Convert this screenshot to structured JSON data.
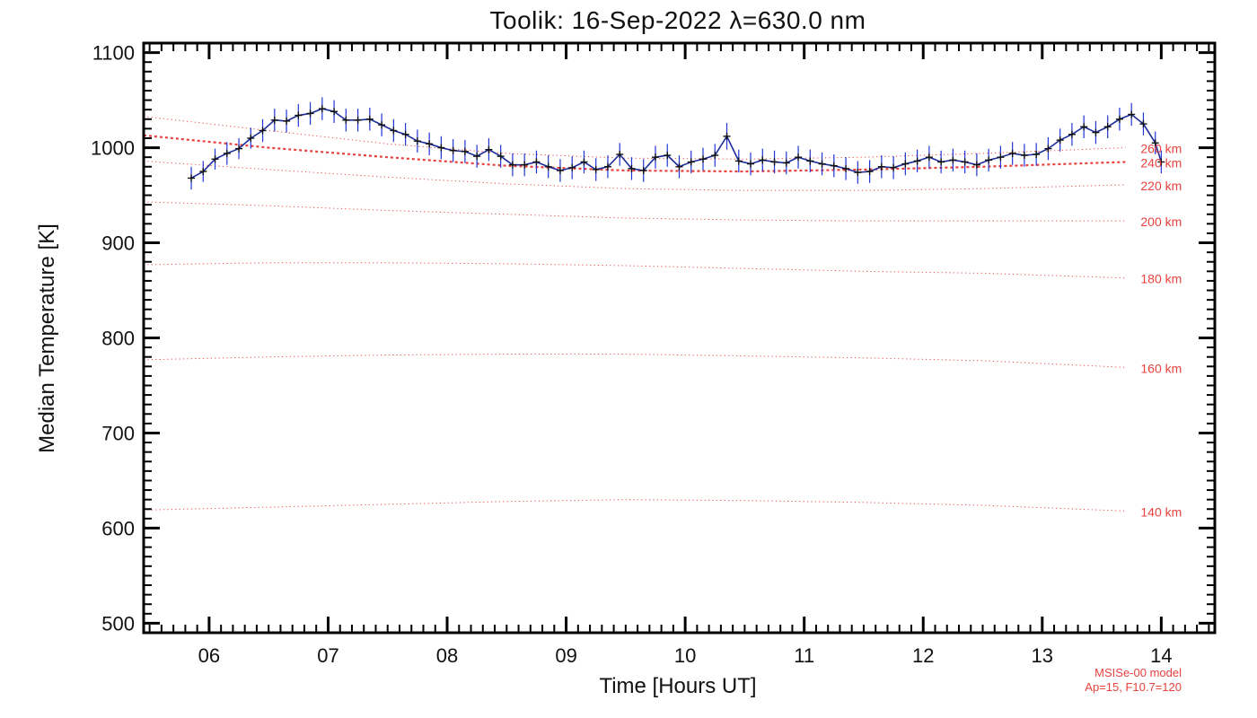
{
  "chart_data": {
    "type": "line",
    "title": "Toolik: 16-Sep-2022 λ=630.0 nm",
    "xlabel": "Time [Hours UT]",
    "ylabel": "Median Temperature [K]",
    "xlim": [
      5.45,
      14.45
    ],
    "ylim": [
      490,
      1110
    ],
    "xticks": [
      6,
      7,
      8,
      9,
      10,
      11,
      12,
      13,
      14
    ],
    "xtick_labels": [
      "06",
      "07",
      "08",
      "09",
      "10",
      "11",
      "12",
      "13",
      "14"
    ],
    "yticks": [
      500,
      600,
      700,
      800,
      900,
      1000,
      1100
    ],
    "ytick_labels": [
      "500",
      "600",
      "700",
      "800",
      "900",
      "1000",
      "1100"
    ],
    "grid": false,
    "colors": {
      "observed_line": "#1c2d9b",
      "observed_marker": "#111111",
      "error_bar": "#2136d6",
      "model": "#e8413e",
      "axis": "#000000"
    },
    "series": [
      {
        "type": "line_with_error",
        "x": [
          5.85,
          5.95,
          6.05,
          6.15,
          6.25,
          6.35,
          6.45,
          6.55,
          6.65,
          6.75,
          6.85,
          6.95,
          7.05,
          7.15,
          7.25,
          7.35,
          7.45,
          7.55,
          7.65,
          7.75,
          7.85,
          7.95,
          8.05,
          8.15,
          8.25,
          8.35,
          8.45,
          8.55,
          8.65,
          8.75,
          8.85,
          8.95,
          9.05,
          9.15,
          9.25,
          9.35,
          9.45,
          9.55,
          9.65,
          9.75,
          9.85,
          9.95,
          10.05,
          10.15,
          10.25,
          10.35,
          10.45,
          10.55,
          10.65,
          10.75,
          10.85,
          10.95,
          11.05,
          11.15,
          11.25,
          11.35,
          11.45,
          11.55,
          11.65,
          11.75,
          11.85,
          11.95,
          12.05,
          12.15,
          12.25,
          12.35,
          12.45,
          12.55,
          12.65,
          12.75,
          12.85,
          12.95,
          13.05,
          13.15,
          13.25,
          13.35,
          13.45,
          13.55,
          13.65,
          13.75,
          13.85,
          13.95,
          14.0
        ],
        "values": [
          968,
          975,
          988,
          994,
          999,
          1010,
          1018,
          1029,
          1028,
          1034,
          1036,
          1041,
          1038,
          1029,
          1029,
          1030,
          1024,
          1018,
          1014,
          1007,
          1004,
          1000,
          997,
          996,
          991,
          998,
          991,
          982,
          982,
          985,
          980,
          976,
          979,
          985,
          977,
          980,
          993,
          978,
          976,
          990,
          992,
          980,
          985,
          988,
          992,
          1012,
          986,
          983,
          987,
          985,
          984,
          990,
          986,
          983,
          981,
          978,
          974,
          975,
          980,
          979,
          983,
          986,
          990,
          985,
          987,
          985,
          982,
          987,
          990,
          994,
          992,
          993,
          999,
          1008,
          1014,
          1022,
          1016,
          1022,
          1030,
          1035,
          1025,
          1005,
          985
        ],
        "error_bars": [
          12,
          11,
          11,
          12,
          11,
          11,
          12,
          12,
          12,
          12,
          12,
          12,
          12,
          12,
          12,
          12,
          12,
          12,
          12,
          12,
          12,
          12,
          12,
          12,
          12,
          12,
          12,
          12,
          12,
          12,
          12,
          12,
          12,
          12,
          12,
          12,
          12,
          12,
          12,
          12,
          12,
          12,
          12,
          12,
          12,
          14,
          12,
          12,
          12,
          12,
          12,
          12,
          12,
          12,
          12,
          12,
          12,
          12,
          12,
          12,
          12,
          12,
          12,
          12,
          12,
          12,
          12,
          12,
          12,
          12,
          12,
          12,
          12,
          12,
          12,
          12,
          12,
          12,
          12,
          12,
          12,
          12,
          12
        ]
      },
      {
        "type": "model_line",
        "label": "140 km",
        "x": [
          5.45,
          6.5,
          7.5,
          8.5,
          9.5,
          10.5,
          11.5,
          12.5,
          13.7
        ],
        "values": [
          619,
          622,
          625,
          628,
          630,
          629,
          627,
          624,
          618
        ]
      },
      {
        "type": "model_line",
        "label": "160 km",
        "x": [
          5.45,
          6.5,
          7.5,
          8.5,
          9.5,
          10.5,
          11.5,
          12.5,
          13.7
        ],
        "values": [
          777,
          780,
          782,
          783,
          783,
          781,
          779,
          776,
          769
        ]
      },
      {
        "type": "model_line",
        "label": "180 km",
        "x": [
          5.45,
          6.5,
          7.5,
          8.5,
          9.5,
          10.5,
          11.5,
          12.5,
          13.7
        ],
        "values": [
          877,
          879,
          879,
          878,
          876,
          873,
          870,
          868,
          863
        ]
      },
      {
        "type": "model_line",
        "label": "200 km",
        "x": [
          5.45,
          6.5,
          7.5,
          8.5,
          9.5,
          10.5,
          11.5,
          12.5,
          13.7
        ],
        "values": [
          943,
          939,
          934,
          930,
          926,
          924,
          923,
          923,
          923
        ]
      },
      {
        "type": "model_line",
        "label": "220 km",
        "x": [
          5.45,
          6.5,
          7.5,
          8.5,
          9.5,
          10.5,
          11.5,
          12.5,
          13.7
        ],
        "values": [
          986,
          977,
          969,
          962,
          957,
          955,
          955,
          957,
          961
        ]
      },
      {
        "type": "model_line",
        "label": "240 km",
        "x": [
          5.45,
          6.5,
          7.5,
          8.5,
          9.5,
          10.5,
          11.5,
          12.5,
          13.7
        ],
        "values": [
          1013,
          1000,
          990,
          981,
          976,
          975,
          977,
          980,
          985
        ]
      },
      {
        "type": "model_line",
        "label": "260 km",
        "x": [
          5.45,
          6.5,
          7.5,
          8.5,
          9.5,
          10.5,
          11.5,
          12.5,
          13.7
        ],
        "values": [
          1033,
          1018,
          1004,
          994,
          989,
          988,
          990,
          994,
          1000
        ]
      }
    ]
  },
  "footer": {
    "line1": "MSISe-00 model",
    "line2": "Ap=15, F10.7=120"
  }
}
